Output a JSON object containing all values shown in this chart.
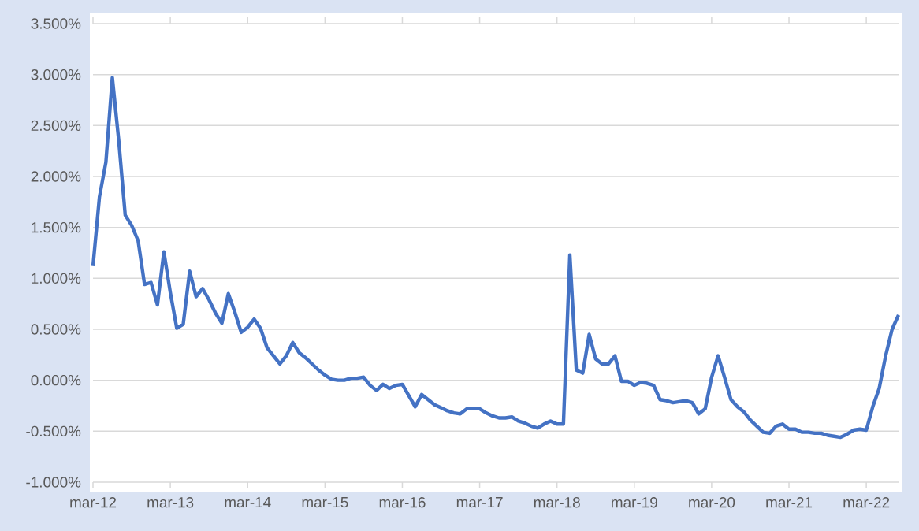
{
  "chart_data": {
    "type": "line",
    "color": "#4472c4",
    "grid": "y",
    "categories": [
      "mar-12",
      null,
      null,
      null,
      null,
      null,
      null,
      null,
      null,
      null,
      null,
      null,
      "mar-13",
      null,
      null,
      null,
      null,
      null,
      null,
      null,
      null,
      null,
      null,
      null,
      "mar-14",
      null,
      null,
      null,
      null,
      null,
      null,
      null,
      null,
      null,
      null,
      null,
      "mar-15",
      null,
      null,
      null,
      null,
      null,
      null,
      null,
      null,
      null,
      null,
      null,
      "mar-16",
      null,
      null,
      null,
      null,
      null,
      null,
      null,
      null,
      null,
      null,
      null,
      "mar-17",
      null,
      null,
      null,
      null,
      null,
      null,
      null,
      null,
      null,
      null,
      null,
      "mar-18",
      null,
      null,
      null,
      null,
      null,
      null,
      null,
      null,
      null,
      null,
      null,
      "mar-19",
      null,
      null,
      null,
      null,
      null,
      null,
      null,
      null,
      null,
      null,
      null,
      "mar-20",
      null,
      null,
      null,
      null,
      null,
      null,
      null,
      null,
      null,
      null,
      null,
      "mar-21",
      null,
      null,
      null,
      null,
      null,
      null,
      null,
      null,
      null,
      null,
      null,
      "mar-22",
      null,
      null,
      null,
      null,
      null
    ],
    "values": [
      1.12,
      1.8,
      2.14,
      2.97,
      2.35,
      1.62,
      1.52,
      1.37,
      0.94,
      0.96,
      0.74,
      1.26,
      0.86,
      0.51,
      0.55,
      1.07,
      0.82,
      0.9,
      0.79,
      0.66,
      0.56,
      0.85,
      0.67,
      0.47,
      0.52,
      0.6,
      0.51,
      0.32,
      0.24,
      0.16,
      0.24,
      0.37,
      0.27,
      0.22,
      0.16,
      0.1,
      0.05,
      0.01,
      0.0,
      0.0,
      0.02,
      0.02,
      0.03,
      -0.05,
      -0.1,
      -0.04,
      -0.08,
      -0.05,
      -0.04,
      -0.15,
      -0.26,
      -0.14,
      -0.19,
      -0.24,
      -0.27,
      -0.3,
      -0.32,
      -0.33,
      -0.28,
      -0.28,
      -0.28,
      -0.32,
      -0.35,
      -0.37,
      -0.37,
      -0.36,
      -0.4,
      -0.42,
      -0.45,
      -0.47,
      -0.43,
      -0.4,
      -0.43,
      -0.43,
      1.23,
      0.1,
      0.07,
      0.45,
      0.21,
      0.16,
      0.16,
      0.24,
      -0.01,
      -0.01,
      -0.05,
      -0.02,
      -0.03,
      -0.05,
      -0.19,
      -0.2,
      -0.22,
      -0.21,
      -0.2,
      -0.22,
      -0.33,
      -0.28,
      0.03,
      0.24,
      0.03,
      -0.19,
      -0.26,
      -0.31,
      -0.39,
      -0.45,
      -0.51,
      -0.52,
      -0.45,
      -0.43,
      -0.48,
      -0.48,
      -0.51,
      -0.51,
      -0.52,
      -0.52,
      -0.54,
      -0.55,
      -0.56,
      -0.53,
      -0.49,
      -0.48,
      -0.49,
      -0.26,
      -0.08,
      0.24,
      0.5,
      0.64
    ],
    "ylim": [
      -1.0,
      3.5
    ],
    "yticks": [
      {
        "value": -1.0,
        "label": "-1.000%"
      },
      {
        "value": -0.5,
        "label": "-0.500%"
      },
      {
        "value": 0.0,
        "label": "0.000%"
      },
      {
        "value": 0.5,
        "label": "0.500%"
      },
      {
        "value": 1.0,
        "label": "1.000%"
      },
      {
        "value": 1.5,
        "label": "1.500%"
      },
      {
        "value": 2.0,
        "label": "2.000%"
      },
      {
        "value": 2.5,
        "label": "2.500%"
      },
      {
        "value": 3.0,
        "label": "3.000%"
      },
      {
        "value": 3.5,
        "label": "3.500%"
      }
    ]
  }
}
